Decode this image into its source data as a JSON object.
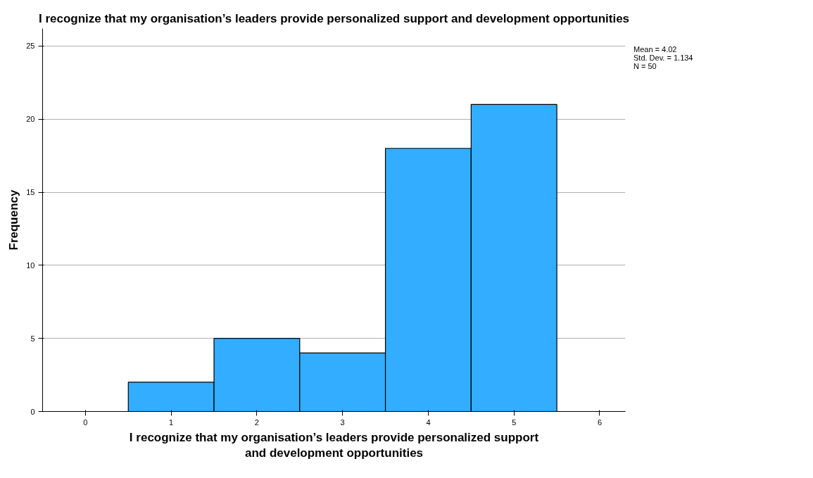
{
  "chart_data": {
    "type": "histogram",
    "title": "I recognize that my organisation’s leaders provide personalized support and development opportunities",
    "xlabel": "I recognize that my organisation’s leaders provide personalized support and development opportunities",
    "ylabel": "Frequency",
    "bins": [
      0.5,
      1.5,
      2.5,
      3.5,
      4.5,
      5.5
    ],
    "values": [
      2,
      5,
      4,
      18,
      21
    ],
    "color": "#33adff",
    "xlim": [
      -0.5,
      6.3
    ],
    "xticks": [
      0,
      1,
      2,
      3,
      4,
      5,
      6
    ],
    "ylim": [
      0,
      26.2
    ],
    "yticks": [
      0,
      5,
      10,
      15,
      20,
      25
    ],
    "grid": "y",
    "annotations": [
      "Mean = 4.02",
      "Std. Dev. = 1.134",
      "N = 50"
    ]
  }
}
